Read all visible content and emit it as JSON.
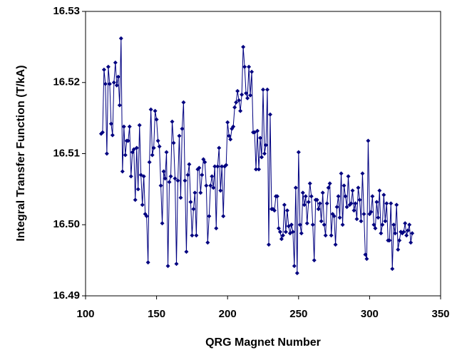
{
  "chart_data": {
    "type": "line",
    "x_label": "QRG Magnet Number",
    "y_label": "Integral Transfer Function (T/kA)",
    "xlim": [
      100,
      350
    ],
    "xticks": [
      100,
      150,
      200,
      250,
      300,
      350
    ],
    "ylim": [
      16.49,
      16.53
    ],
    "yticks": [
      16.49,
      {
        "value": 16.5,
        "label": "16.50"
      },
      16.51,
      16.52,
      16.53
    ],
    "grid": false,
    "series": [
      {
        "color": "#000080",
        "x": [
          111,
          112,
          113,
          114,
          115,
          116,
          117,
          118,
          119,
          120,
          121,
          122,
          123,
          124,
          125,
          126,
          127,
          128,
          129,
          130,
          131,
          132,
          133,
          134,
          135,
          136,
          137,
          138,
          139,
          140,
          141,
          142,
          143,
          144,
          145,
          146,
          147,
          148,
          149,
          150,
          151,
          152,
          153,
          154,
          155,
          156,
          157,
          158,
          159,
          160,
          161,
          162,
          163,
          164,
          165,
          166,
          167,
          168,
          169,
          170,
          171,
          172,
          173,
          174,
          175,
          176,
          177,
          178,
          179,
          180,
          181,
          182,
          183,
          184,
          185,
          186,
          187,
          188,
          189,
          190,
          191,
          192,
          193,
          194,
          195,
          196,
          197,
          198,
          199,
          200,
          201,
          202,
          203,
          204,
          205,
          206,
          207,
          208,
          209,
          210,
          211,
          212,
          213,
          214,
          215,
          216,
          217,
          218,
          219,
          220,
          221,
          222,
          223,
          224,
          225,
          226,
          227,
          228,
          229,
          230,
          231,
          232,
          233,
          234,
          235,
          236,
          237,
          238,
          239,
          240,
          241,
          242,
          243,
          244,
          245,
          246,
          247,
          248,
          249,
          250,
          251,
          252,
          253,
          254,
          255,
          256,
          257,
          258,
          259,
          260,
          261,
          262,
          263,
          264,
          265,
          266,
          267,
          268,
          269,
          270,
          271,
          272,
          273,
          274,
          275,
          276,
          277,
          278,
          279,
          280,
          281,
          282,
          283,
          284,
          285,
          286,
          287,
          288,
          289,
          290,
          291,
          292,
          293,
          294,
          295,
          296,
          297,
          298,
          299,
          300,
          301,
          302,
          303,
          304,
          305,
          306,
          307,
          308,
          309,
          310,
          311,
          312,
          313,
          314,
          315,
          316,
          317,
          318,
          319,
          320,
          321,
          322,
          323,
          324,
          325,
          326,
          327,
          328,
          329,
          330
        ],
        "values": [
          16.5128,
          16.513,
          16.5218,
          16.5198,
          16.51,
          16.5222,
          16.5198,
          16.5142,
          16.5126,
          16.52,
          16.5228,
          16.5196,
          16.5208,
          16.5168,
          16.5262,
          16.5075,
          16.5138,
          16.5098,
          16.5118,
          16.5118,
          16.5138,
          16.5068,
          16.5102,
          16.5106,
          16.5035,
          16.5108,
          16.505,
          16.514,
          16.507,
          16.5028,
          16.5068,
          16.5015,
          16.5012,
          16.4947,
          16.5088,
          16.5162,
          16.5098,
          16.5108,
          16.516,
          16.5148,
          16.5118,
          16.511,
          16.5055,
          16.5002,
          16.5075,
          16.5065,
          16.5102,
          16.4942,
          16.506,
          16.5068,
          16.5145,
          16.5115,
          16.5065,
          16.4945,
          16.5062,
          16.5125,
          16.5038,
          16.5135,
          16.5172,
          16.5062,
          16.4962,
          16.507,
          16.5085,
          16.5032,
          16.4985,
          16.5022,
          16.5045,
          16.4985,
          16.5078,
          16.508,
          16.5045,
          16.507,
          16.5092,
          16.5088,
          16.5055,
          16.4975,
          16.5012,
          16.5055,
          16.5068,
          16.5052,
          16.5082,
          16.4995,
          16.5082,
          16.5108,
          16.5048,
          16.5082,
          16.5012,
          16.5082,
          16.5084,
          16.5144,
          16.5125,
          16.512,
          16.5135,
          16.5138,
          16.5165,
          16.5172,
          16.5188,
          16.5175,
          16.516,
          16.5183,
          16.525,
          16.5222,
          16.5185,
          16.5178,
          16.5222,
          16.5182,
          16.5215,
          16.513,
          16.513,
          16.5078,
          16.5132,
          16.5078,
          16.5122,
          16.5095,
          16.519,
          16.51,
          16.5112,
          16.519,
          16.4972,
          16.5155,
          16.5022,
          16.5022,
          16.502,
          16.504,
          16.504,
          16.4995,
          16.499,
          16.498,
          16.4985,
          16.5028,
          16.499,
          16.502,
          16.4998,
          16.4988,
          16.5,
          16.499,
          16.4942,
          16.5052,
          16.4932,
          16.5102,
          16.5,
          16.4988,
          16.5045,
          16.5028,
          16.504,
          16.5002,
          16.5032,
          16.5058,
          16.504,
          16.5,
          16.495,
          16.5035,
          16.5035,
          16.5022,
          16.503,
          16.5005,
          16.5045,
          16.5,
          16.4985,
          16.503,
          16.5052,
          16.5058,
          16.4985,
          16.5015,
          16.5012,
          16.4972,
          16.5025,
          16.504,
          16.501,
          16.5072,
          16.5,
          16.5055,
          16.504,
          16.5025,
          16.5068,
          16.5028,
          16.503,
          16.5048,
          16.502,
          16.503,
          16.5008,
          16.5052,
          16.5035,
          16.5005,
          16.5072,
          16.5015,
          16.4958,
          16.4952,
          16.5118,
          16.5015,
          16.5018,
          16.504,
          16.5,
          16.4995,
          16.5032,
          16.501,
          16.5048,
          16.4988,
          16.5,
          16.5042,
          16.5005,
          16.503,
          16.4978,
          16.4978,
          16.503,
          16.4938,
          16.5,
          16.4988,
          16.5028,
          16.4965,
          16.4978,
          16.499,
          16.4988,
          16.499,
          16.5002,
          16.4985,
          16.4992,
          16.5,
          16.4975,
          16.4988
        ]
      }
    ]
  }
}
